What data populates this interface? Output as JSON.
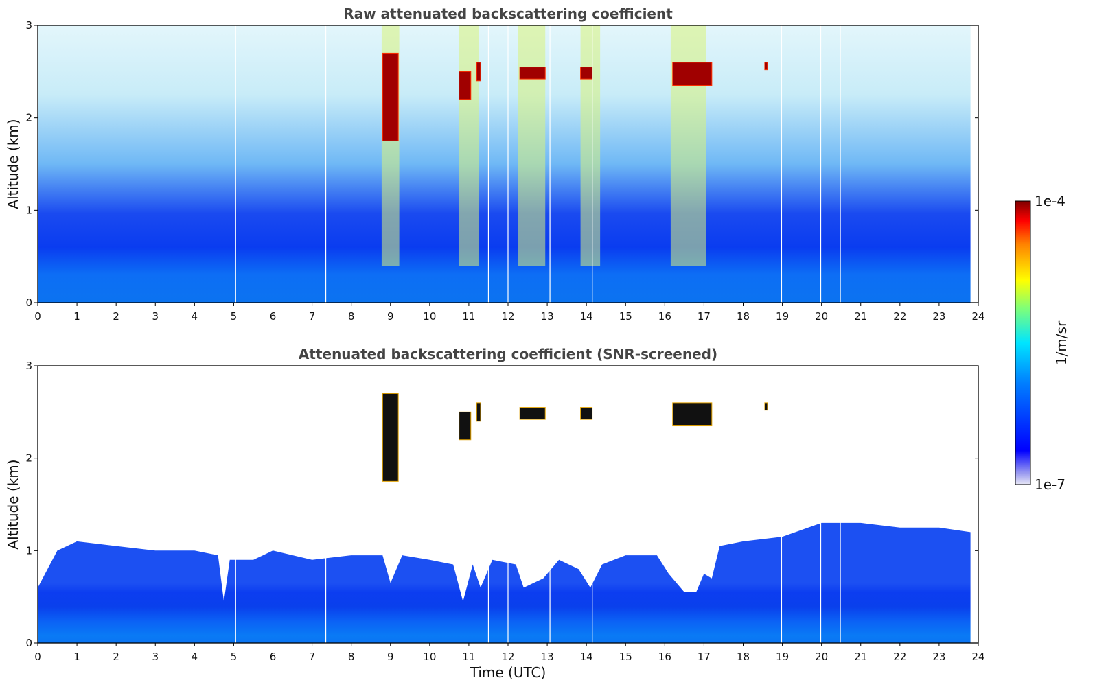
{
  "chart_data": [
    {
      "type": "heatmap",
      "title": "Raw attenuated backscattering coefficient",
      "xlabel": "",
      "ylabel": "Altitude (km)",
      "xlim": [
        0,
        24
      ],
      "ylim": [
        0,
        3
      ],
      "xticks": [
        0,
        1,
        2,
        3,
        4,
        5,
        6,
        7,
        8,
        9,
        10,
        11,
        12,
        13,
        14,
        15,
        16,
        17,
        18,
        19,
        20,
        21,
        22,
        23,
        24
      ],
      "yticks": [
        0,
        1,
        2,
        3
      ],
      "data_time_end": 23.8,
      "gap_lines": [
        5.05,
        7.35,
        11.5,
        12.0,
        13.07,
        14.15,
        18.98,
        19.98,
        20.48
      ],
      "cloud_bands": [
        {
          "center": 9.0,
          "width": 0.45
        },
        {
          "center": 11.0,
          "width": 0.5
        },
        {
          "center": 12.6,
          "width": 0.7
        },
        {
          "center": 14.1,
          "width": 0.5
        },
        {
          "center": 16.6,
          "width": 0.9
        }
      ],
      "cloud_layers": [
        {
          "t0": 8.8,
          "t1": 9.2,
          "z0": 1.75,
          "z1": 2.7
        },
        {
          "t0": 10.75,
          "t1": 11.05,
          "z0": 2.2,
          "z1": 2.5
        },
        {
          "t0": 11.2,
          "t1": 11.3,
          "z0": 2.4,
          "z1": 2.6
        },
        {
          "t0": 12.3,
          "t1": 12.95,
          "z0": 2.42,
          "z1": 2.55
        },
        {
          "t0": 13.85,
          "t1": 14.15,
          "z0": 2.42,
          "z1": 2.55
        },
        {
          "t0": 16.2,
          "t1": 17.2,
          "z0": 2.35,
          "z1": 2.6
        },
        {
          "t0": 18.55,
          "t1": 18.62,
          "z0": 2.52,
          "z1": 2.6
        }
      ]
    },
    {
      "type": "heatmap",
      "title": "Attenuated backscattering coefficient (SNR-screened)",
      "xlabel": "Time (UTC)",
      "ylabel": "Altitude (km)",
      "xlim": [
        0,
        24
      ],
      "ylim": [
        0,
        3
      ],
      "xticks": [
        0,
        1,
        2,
        3,
        4,
        5,
        6,
        7,
        8,
        9,
        10,
        11,
        12,
        13,
        14,
        15,
        16,
        17,
        18,
        19,
        20,
        21,
        22,
        23,
        24
      ],
      "yticks": [
        0,
        1,
        2,
        3
      ],
      "data_time_end": 23.8,
      "gap_lines": [
        5.05,
        7.35,
        11.5,
        12.0,
        13.07,
        14.15,
        18.98,
        19.98,
        20.48
      ],
      "boundary_layer_top_km": [
        [
          0.0,
          0.6
        ],
        [
          0.5,
          1.0
        ],
        [
          1.0,
          1.1
        ],
        [
          2.0,
          1.05
        ],
        [
          3.0,
          1.0
        ],
        [
          4.0,
          1.0
        ],
        [
          4.6,
          0.95
        ],
        [
          4.75,
          0.45
        ],
        [
          4.9,
          0.9
        ],
        [
          5.5,
          0.9
        ],
        [
          6.0,
          1.0
        ],
        [
          7.0,
          0.9
        ],
        [
          8.0,
          0.95
        ],
        [
          8.8,
          0.95
        ],
        [
          9.0,
          0.65
        ],
        [
          9.3,
          0.95
        ],
        [
          10.0,
          0.9
        ],
        [
          10.6,
          0.85
        ],
        [
          10.85,
          0.45
        ],
        [
          11.1,
          0.85
        ],
        [
          11.3,
          0.6
        ],
        [
          11.6,
          0.9
        ],
        [
          12.2,
          0.85
        ],
        [
          12.4,
          0.6
        ],
        [
          12.9,
          0.7
        ],
        [
          13.3,
          0.9
        ],
        [
          13.8,
          0.8
        ],
        [
          14.1,
          0.6
        ],
        [
          14.4,
          0.85
        ],
        [
          15.0,
          0.95
        ],
        [
          15.8,
          0.95
        ],
        [
          16.1,
          0.75
        ],
        [
          16.5,
          0.55
        ],
        [
          16.8,
          0.55
        ],
        [
          17.0,
          0.75
        ],
        [
          17.2,
          0.7
        ],
        [
          17.4,
          1.05
        ],
        [
          18.0,
          1.1
        ],
        [
          19.0,
          1.15
        ],
        [
          20.0,
          1.3
        ],
        [
          21.0,
          1.3
        ],
        [
          22.0,
          1.25
        ],
        [
          23.0,
          1.25
        ],
        [
          23.8,
          1.2
        ]
      ],
      "cloud_layers": [
        {
          "t0": 8.8,
          "t1": 9.2,
          "z0": 1.75,
          "z1": 2.7
        },
        {
          "t0": 10.75,
          "t1": 11.05,
          "z0": 2.2,
          "z1": 2.5
        },
        {
          "t0": 11.2,
          "t1": 11.3,
          "z0": 2.4,
          "z1": 2.6
        },
        {
          "t0": 12.3,
          "t1": 12.95,
          "z0": 2.42,
          "z1": 2.55
        },
        {
          "t0": 13.85,
          "t1": 14.15,
          "z0": 2.42,
          "z1": 2.55
        },
        {
          "t0": 16.2,
          "t1": 17.2,
          "z0": 2.35,
          "z1": 2.6
        },
        {
          "t0": 18.55,
          "t1": 18.62,
          "z0": 2.52,
          "z1": 2.6
        }
      ]
    }
  ],
  "colorbar": {
    "label": "1/m/sr",
    "max_label": "1e-4",
    "min_label": "1e-7",
    "colormap": "jet",
    "colors": [
      "#e6e6f5",
      "#9a9af0",
      "#0000ff",
      "#0080ff",
      "#00e5ff",
      "#7dff7a",
      "#ffff00",
      "#ff8000",
      "#ff0000",
      "#800000"
    ]
  }
}
